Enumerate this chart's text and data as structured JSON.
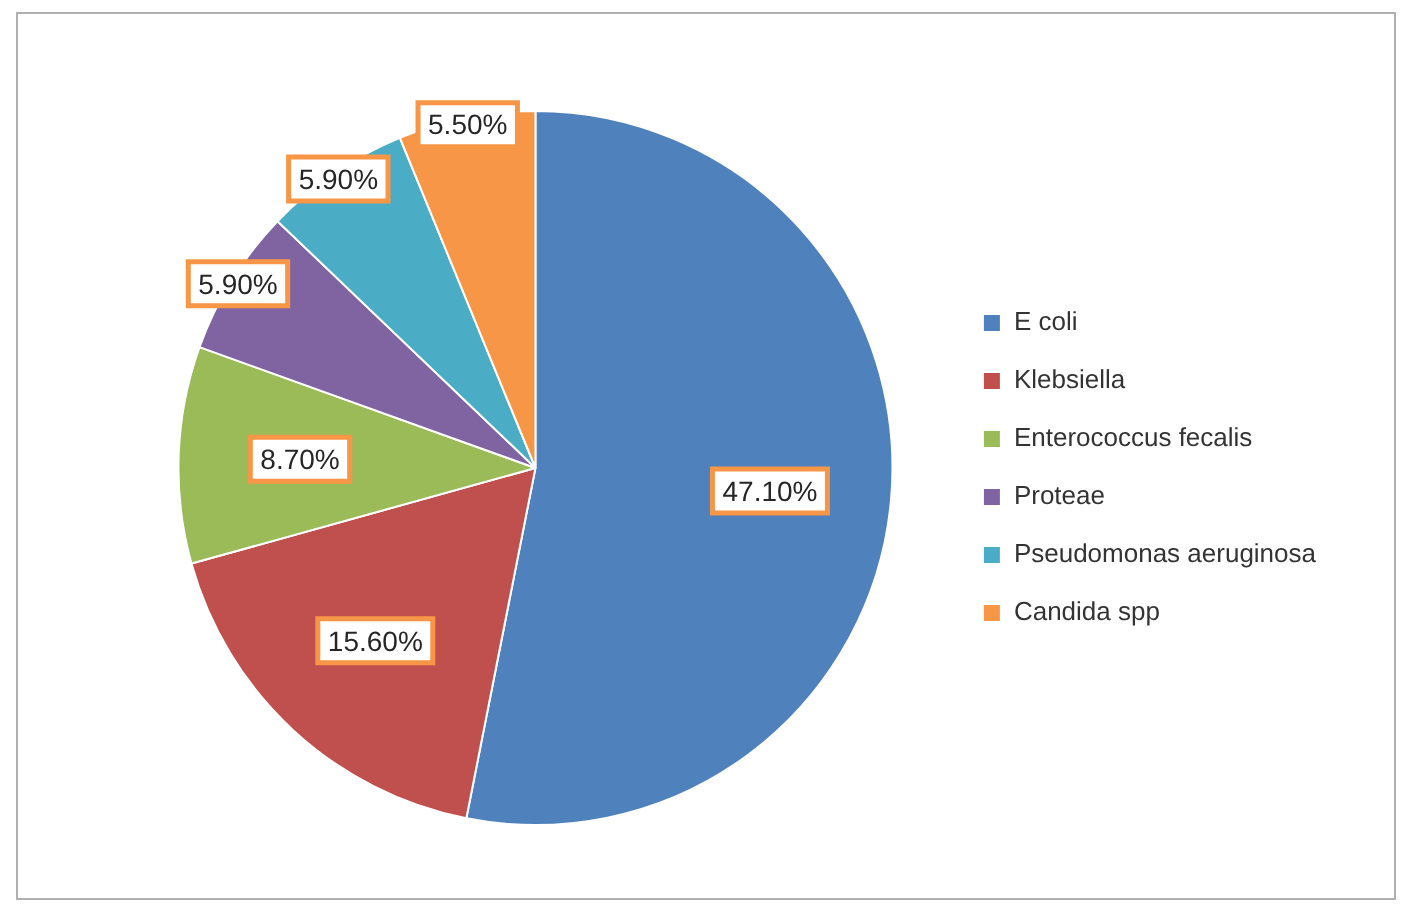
{
  "chart_data": {
    "type": "pie",
    "categories": [
      "E coli",
      "Klebsiella",
      "Enterococcus fecalis",
      "Proteae",
      "Pseudomonas aeruginosa",
      "Candida spp"
    ],
    "values": [
      47.1,
      15.6,
      8.7,
      5.9,
      5.9,
      5.5
    ],
    "value_labels": [
      "47.10%",
      "15.60%",
      "8.70%",
      "5.90%",
      "5.90%",
      "5.50%"
    ],
    "colors": [
      "#4f81bd",
      "#c0504d",
      "#9bbb59",
      "#8064a2",
      "#4bacc6",
      "#f79646"
    ],
    "legend": "right"
  }
}
